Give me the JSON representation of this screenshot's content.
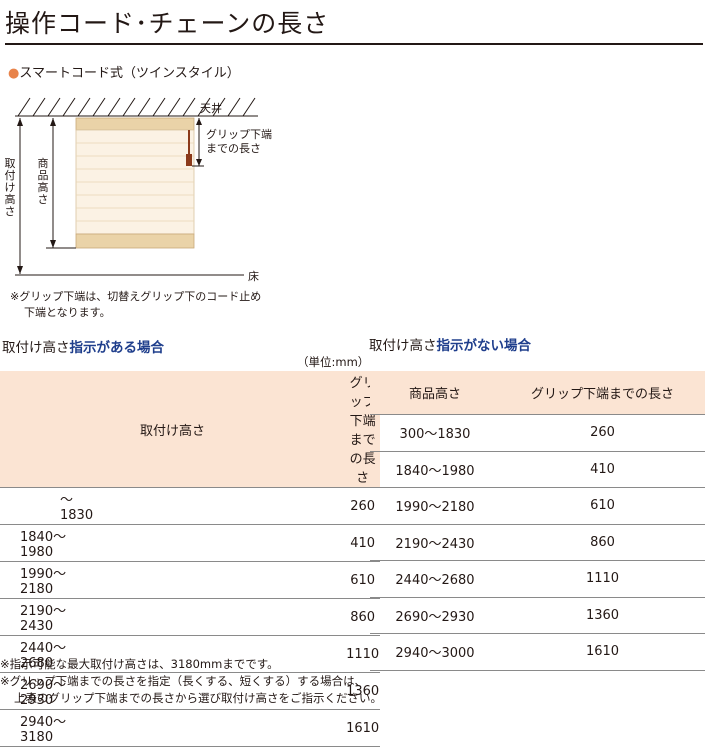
{
  "title": "操作コード･チェーンの長さ",
  "subtitle": {
    "bullet": "●",
    "text": "スマートコード式（ツインスタイル）"
  },
  "diagram": {
    "ceiling_label": "天井",
    "floor_label": "床",
    "mount_height_label": "取付け高さ",
    "product_height_label": "商品高さ",
    "grip_label_line1": "グリップ下端",
    "grip_label_line2": "までの長さ"
  },
  "note": {
    "line1": "※グリップ下端は、切替えグリップ下のコード止め",
    "line2": "下端となります。"
  },
  "left_section": {
    "heading_plain": "取付け高さ",
    "heading_emphasis": "指示がある場合",
    "unit": "（単位:mm）",
    "columns": [
      "取付け高さ",
      "グリップ下端までの長さ"
    ],
    "rows": [
      [
        "～1830",
        "260"
      ],
      [
        "1840～1980",
        "410"
      ],
      [
        "1990～2180",
        "610"
      ],
      [
        "2190～2430",
        "860"
      ],
      [
        "2440～2680",
        "1110"
      ],
      [
        "2690～2930",
        "1360"
      ],
      [
        "2940～3180",
        "1610"
      ]
    ]
  },
  "right_section": {
    "heading_plain": "取付け高さ",
    "heading_emphasis": "指示がない場合",
    "columns": [
      "商品高さ",
      "グリップ下端までの長さ"
    ],
    "rows": [
      [
        "300～1830",
        "260"
      ],
      [
        "1840～1980",
        "410"
      ],
      [
        "1990～2180",
        "610"
      ],
      [
        "2190～2430",
        "860"
      ],
      [
        "2440～2680",
        "1110"
      ],
      [
        "2690～2930",
        "1360"
      ],
      [
        "2940～3000",
        "1610"
      ]
    ]
  },
  "footnotes": {
    "line1": "※指示可能な最大取付け高さは、3180mmまでです。",
    "line2": "※グリップ下端までの長さを指定（長くする、短くする）する場合は、",
    "line3": "上表のグリップ下端までの長さから選び取付け高さをご指示ください。"
  },
  "colors": {
    "header_fill": "#fbe4d3",
    "emphasis_text": "#1f3e8c",
    "bullet": "#e8834a",
    "blind": "#f3e2c4",
    "grip": "#8b3a1a"
  }
}
